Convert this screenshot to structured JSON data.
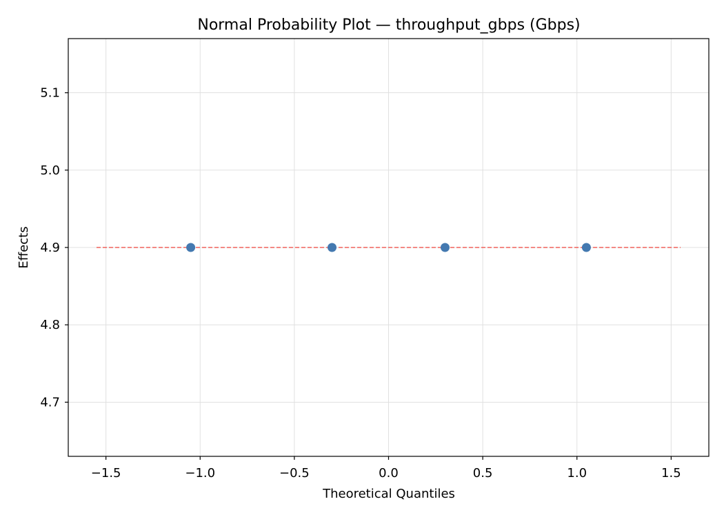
{
  "chart_data": {
    "type": "scatter",
    "title": "Normal Probability Plot — throughput_gbps (Gbps)",
    "xlabel": "Theoretical Quantiles",
    "ylabel": "Effects",
    "xlim": [
      -1.7,
      1.7
    ],
    "ylim": [
      4.63,
      5.17
    ],
    "xticks": [
      -1.5,
      -1.0,
      -0.5,
      0.0,
      0.5,
      1.0,
      1.5
    ],
    "xtick_labels": [
      "−1.5",
      "−1.0",
      "−0.5",
      "0.0",
      "0.5",
      "1.0",
      "1.5"
    ],
    "yticks": [
      4.7,
      4.8,
      4.9,
      5.0,
      5.1
    ],
    "ytick_labels": [
      "4.7",
      "4.8",
      "4.9",
      "5.0",
      "5.1"
    ],
    "grid": true,
    "series": [
      {
        "kind": "points",
        "color": "#4479b0",
        "x": [
          -1.05,
          -0.3,
          0.3,
          1.05
        ],
        "y": [
          4.9,
          4.9,
          4.9,
          4.9
        ]
      },
      {
        "kind": "reference-line",
        "style": "dashed",
        "color": "#f0605a",
        "x": [
          -1.55,
          1.55
        ],
        "y": [
          4.9,
          4.9
        ]
      }
    ]
  }
}
